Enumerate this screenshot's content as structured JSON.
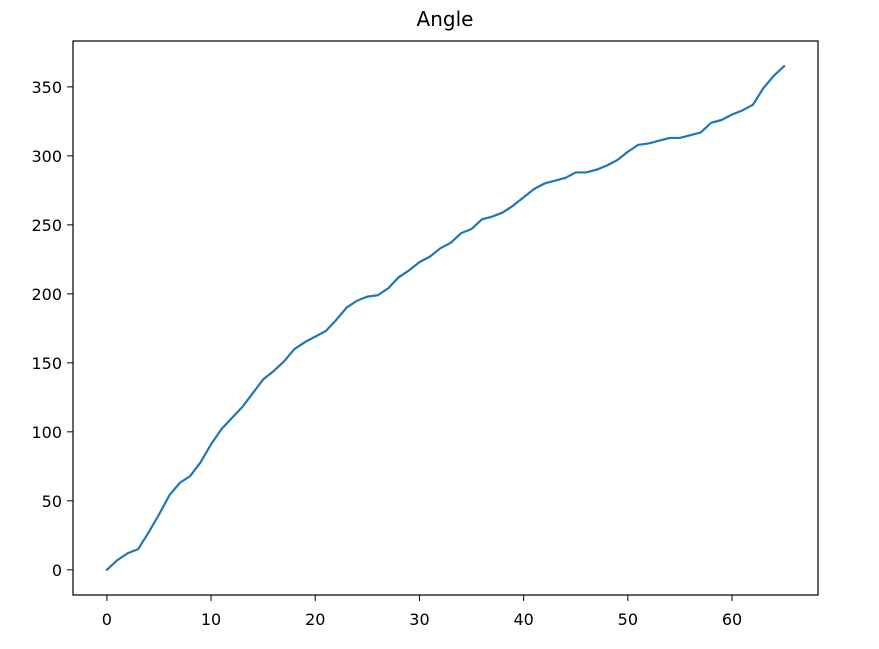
{
  "chart_data": {
    "type": "line",
    "title": "Angle",
    "xlabel": "",
    "ylabel": "",
    "xlim": [
      -3.25,
      68.25
    ],
    "ylim": [
      -18.25,
      383.25
    ],
    "x_ticks": [
      0,
      10,
      20,
      30,
      40,
      50,
      60
    ],
    "y_ticks": [
      0,
      50,
      100,
      150,
      200,
      250,
      300,
      350
    ],
    "grid": false,
    "legend": "none",
    "series": [
      {
        "color": "#1f77b4",
        "x": [
          0,
          1,
          2,
          3,
          4,
          5,
          6,
          7,
          8,
          9,
          10,
          11,
          12,
          13,
          14,
          15,
          16,
          17,
          18,
          19,
          20,
          21,
          22,
          23,
          24,
          25,
          26,
          27,
          28,
          29,
          30,
          31,
          32,
          33,
          34,
          35,
          36,
          37,
          38,
          39,
          40,
          41,
          42,
          43,
          44,
          45,
          46,
          47,
          48,
          49,
          50,
          51,
          52,
          53,
          54,
          55,
          56,
          57,
          58,
          59,
          60,
          61,
          62,
          63,
          64,
          65
        ],
        "y": [
          0,
          7,
          12,
          15,
          27,
          40,
          54,
          63,
          68,
          78,
          91,
          102,
          110,
          118,
          128,
          138,
          144,
          151,
          160,
          165,
          169,
          173,
          181,
          190,
          195,
          198,
          199,
          204,
          212,
          217,
          223,
          227,
          233,
          237,
          244,
          247,
          254,
          256,
          259,
          264,
          270,
          276,
          280,
          282,
          284,
          288,
          288,
          290,
          293,
          297,
          303,
          308,
          309,
          311,
          313,
          313,
          315,
          317,
          324,
          326,
          330,
          333,
          337,
          349,
          358,
          365
        ]
      }
    ]
  }
}
